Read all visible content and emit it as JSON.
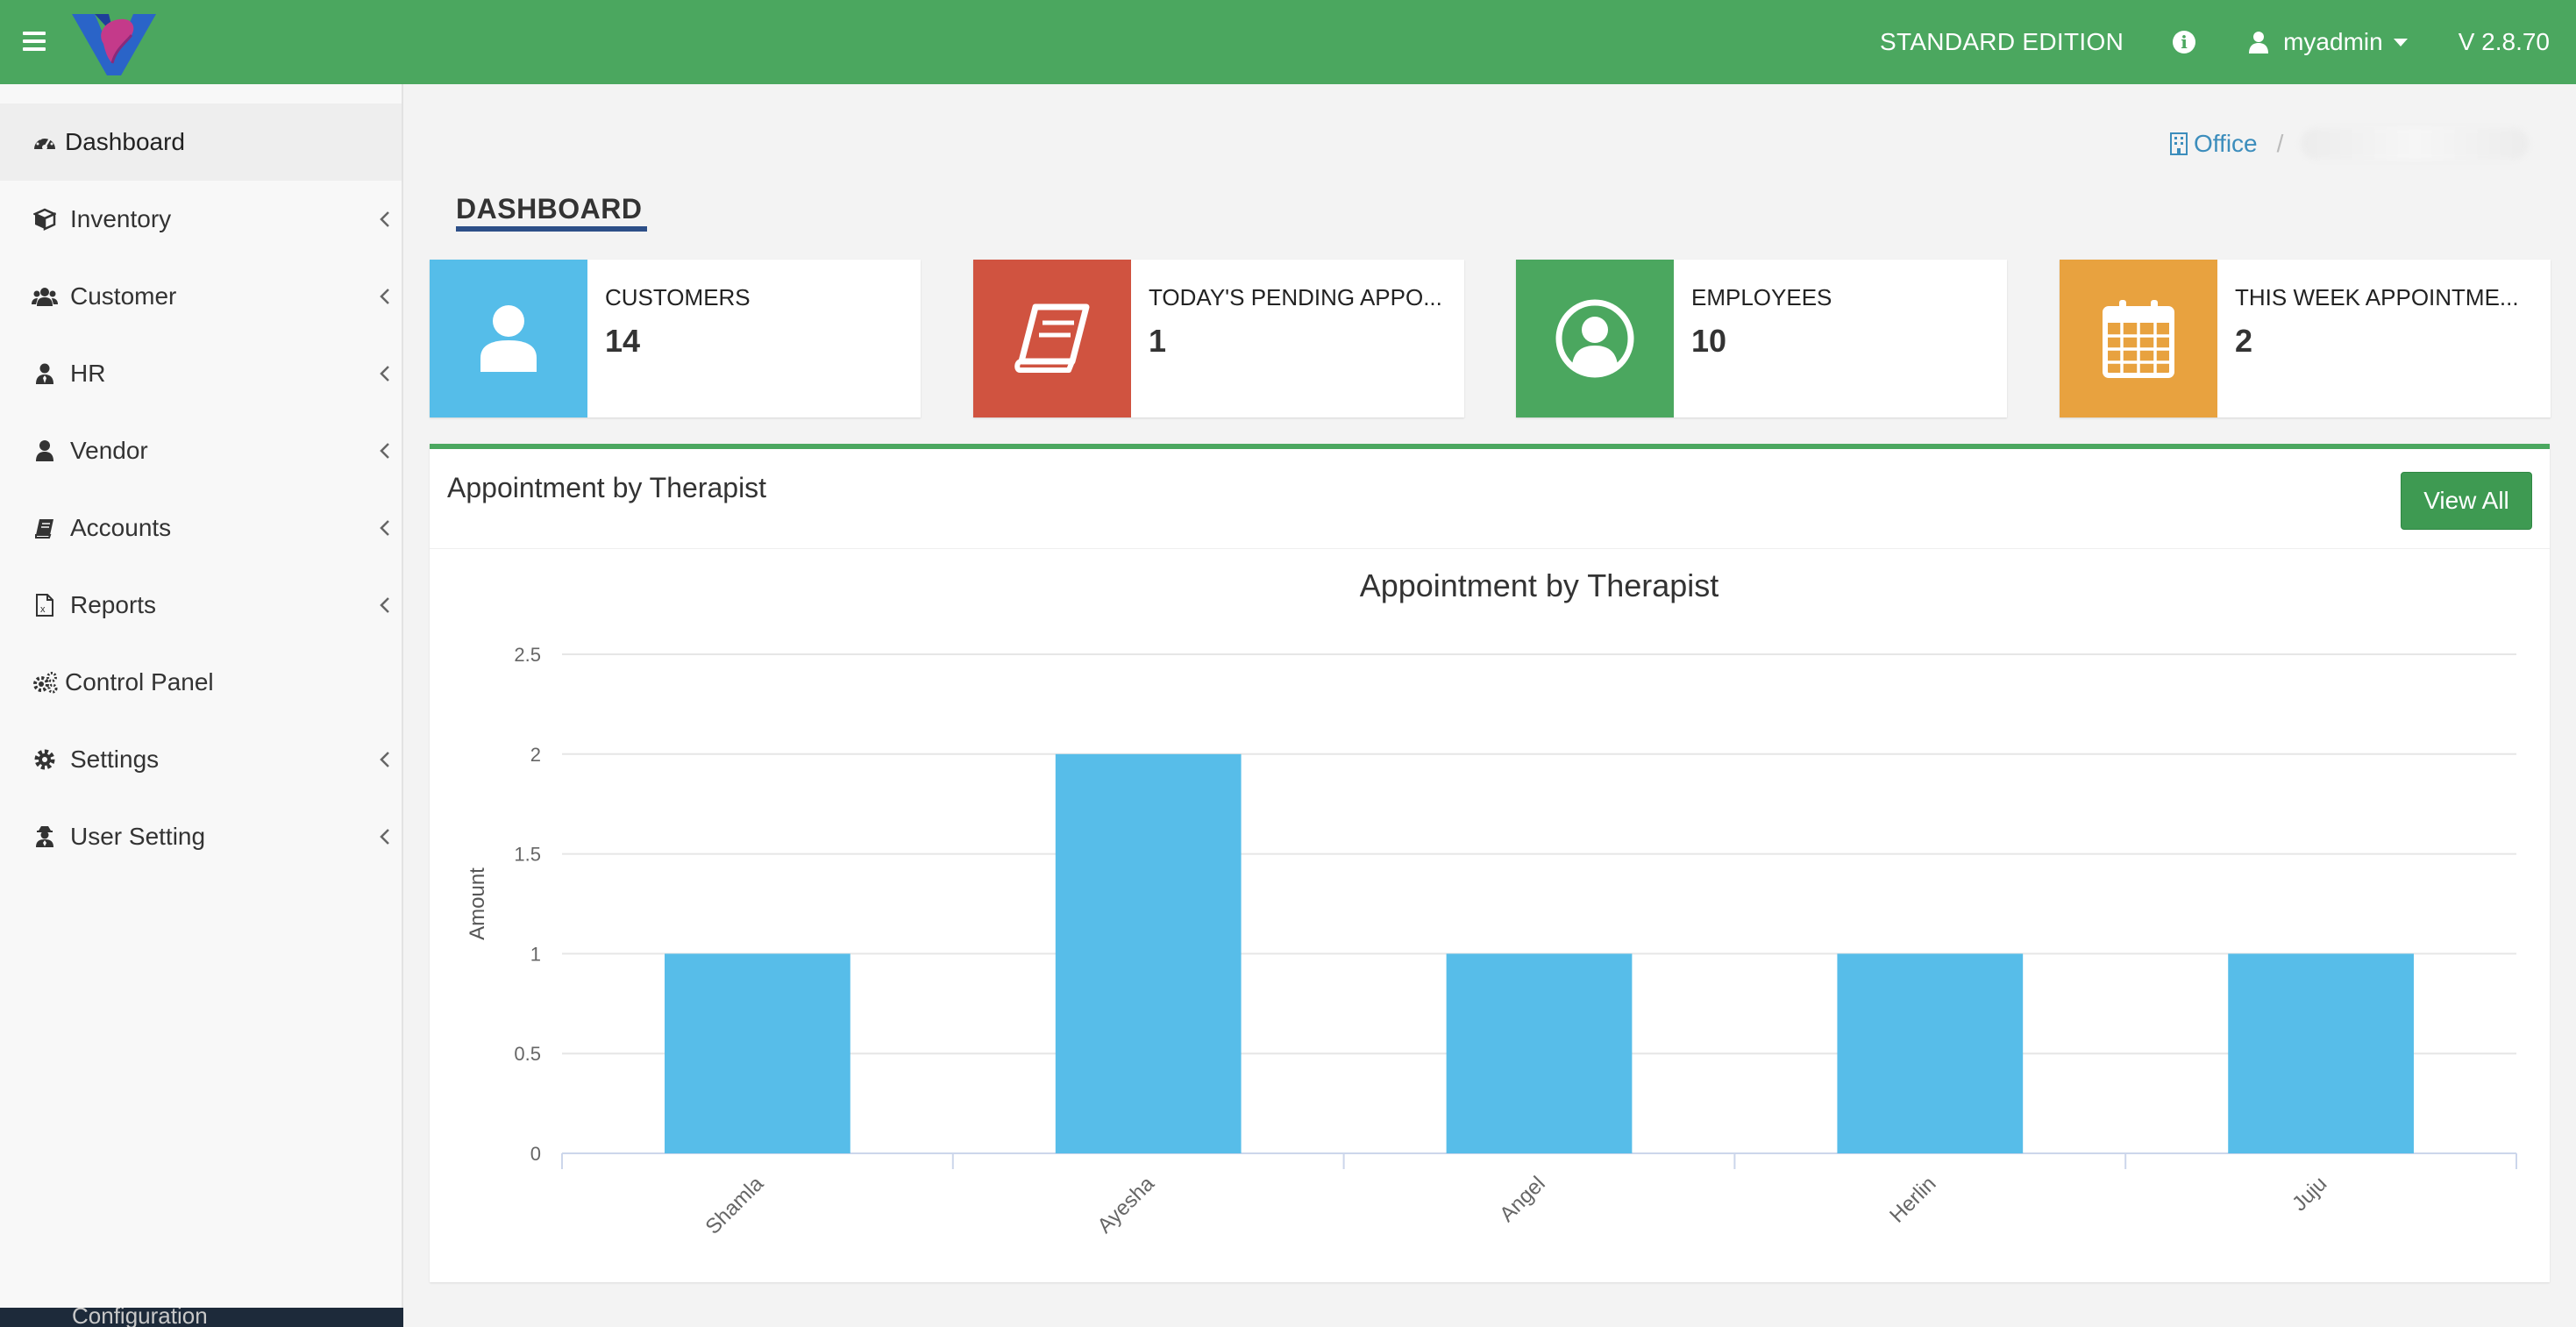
{
  "header": {
    "edition": "STANDARD EDITION",
    "user": "myadmin",
    "version": "V 2.8.70",
    "colors": {
      "bar": "#4ba75f"
    }
  },
  "sidebar": {
    "items": [
      {
        "label": "Dashboard",
        "icon": "dashboard-icon",
        "active": true,
        "has_submenu": false
      },
      {
        "label": "Inventory",
        "icon": "cube-icon",
        "has_submenu": true
      },
      {
        "label": "Customer",
        "icon": "users-icon",
        "has_submenu": true
      },
      {
        "label": "HR",
        "icon": "user-tie-icon",
        "has_submenu": true
      },
      {
        "label": "Vendor",
        "icon": "user-icon",
        "has_submenu": true
      },
      {
        "label": "Accounts",
        "icon": "book-icon",
        "has_submenu": true
      },
      {
        "label": "Reports",
        "icon": "excel-file-icon",
        "has_submenu": true
      },
      {
        "label": "Control Panel",
        "icon": "cogs-icon",
        "has_submenu": false
      },
      {
        "label": "Settings",
        "icon": "gear-icon",
        "has_submenu": true
      },
      {
        "label": "User Setting",
        "icon": "user-secret-icon",
        "has_submenu": true
      }
    ],
    "bottom_text": "Configuration"
  },
  "breadcrumb": {
    "office": "Office",
    "separator": "/"
  },
  "page": {
    "title": "DASHBOARD"
  },
  "cards": [
    {
      "title": "CUSTOMERS",
      "value": "14",
      "color": "#55bde9",
      "icon": "user-icon"
    },
    {
      "title": "TODAY'S PENDING APPO...",
      "value": "1",
      "color": "#d05340",
      "icon": "book-icon"
    },
    {
      "title": "EMPLOYEES",
      "value": "10",
      "color": "#4ba75f",
      "icon": "user-circle-icon"
    },
    {
      "title": "THIS WEEK APPOINTME...",
      "value": "2",
      "color": "#e8a23f",
      "icon": "calendar-icon"
    }
  ],
  "panel": {
    "title": "Appointment by Therapist",
    "view_all": "View All"
  },
  "chart_data": {
    "type": "bar",
    "title": "Appointment by Therapist",
    "ylabel": "Amount",
    "xlabel": "",
    "categories": [
      "Shamla",
      "Ayesha",
      "Angel",
      "Herlin",
      "Juju"
    ],
    "values": [
      1,
      2,
      1,
      1,
      1
    ],
    "ylim": [
      0,
      2.5
    ],
    "yticks": [
      "0",
      "0.5",
      "1",
      "1.5",
      "2",
      "2.5"
    ],
    "grid": true,
    "bar_color": "#57bde9"
  }
}
